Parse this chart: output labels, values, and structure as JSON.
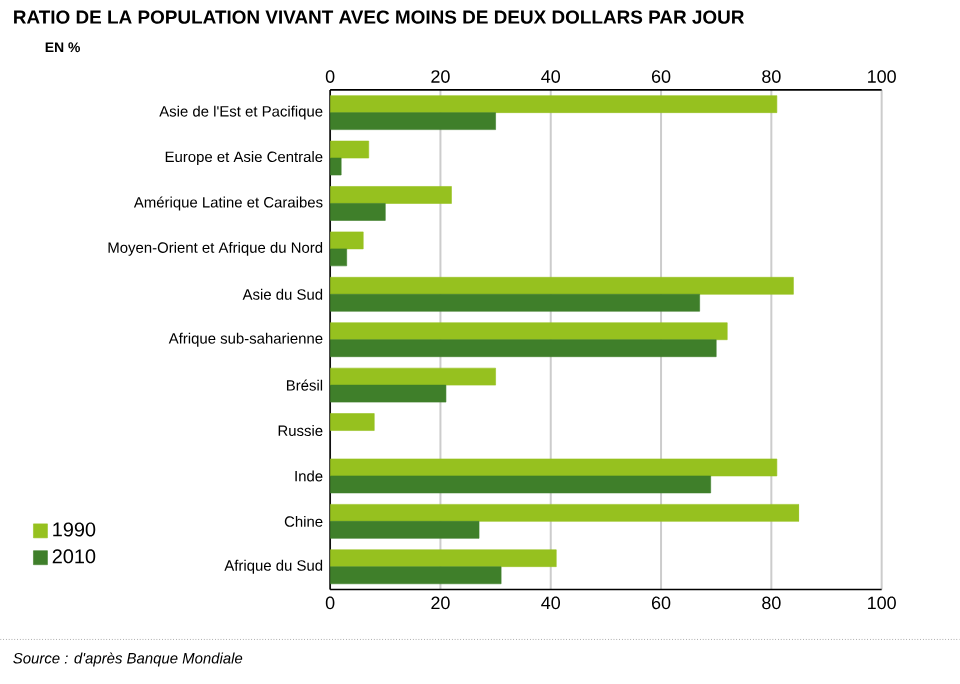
{
  "chart_data": {
    "type": "bar",
    "orientation": "horizontal",
    "title": "RATIO DE LA POPULATION VIVANT AVEC MOINS DE DEUX DOLLARS PAR JOUR",
    "annotations": [
      "EN %",
      "Source : d'après Banque Mondiale"
    ],
    "categories": [
      "Asie de l'Est et Pacifique",
      "Europe et Asie Centrale",
      "Amérique Latine et Caraibes",
      "Moyen-Orient et Afrique du Nord",
      "Asie du Sud",
      "Afrique sub-saharienne",
      "Brésil",
      "Russie",
      "Inde",
      "Chine",
      "Afrique du Sud"
    ],
    "series": [
      {
        "name": "1990",
        "color": "#96c11f",
        "values": [
          81,
          7,
          22,
          6,
          84,
          72,
          30,
          8,
          81,
          85,
          41
        ]
      },
      {
        "name": "2010",
        "color": "#3f7f2a",
        "values": [
          30,
          2,
          10,
          3,
          67,
          70,
          21,
          null,
          69,
          27,
          31
        ]
      }
    ],
    "xlim": [
      0,
      100
    ],
    "xticks": [
      0,
      20,
      40,
      60,
      80,
      100
    ],
    "x2lim": [
      0,
      100
    ],
    "x2ticks": [
      0,
      20,
      40,
      60,
      80,
      100
    ],
    "grid": "x",
    "legend": "bottom left"
  }
}
